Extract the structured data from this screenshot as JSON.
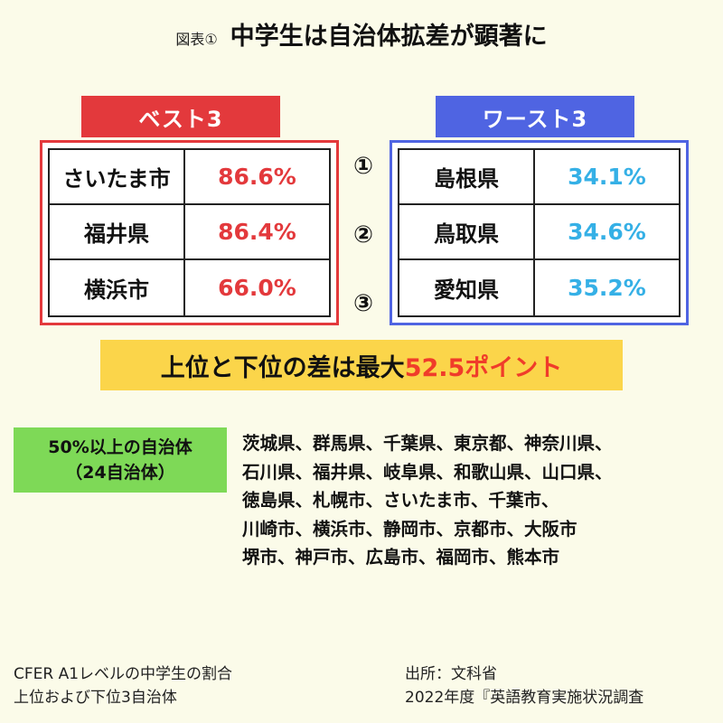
{
  "header": {
    "figure_label": "図表①",
    "title": "中学生は自治体拡差が顕著に"
  },
  "best": {
    "label": "ベスト3",
    "rows": [
      {
        "name": "さいたま市",
        "value": "86.6%"
      },
      {
        "name": "福井県",
        "value": "86.4%"
      },
      {
        "name": "横浜市",
        "value": "66.0%"
      }
    ]
  },
  "worst": {
    "label": "ワースト3",
    "rows": [
      {
        "name": "島根県",
        "value": "34.1%"
      },
      {
        "name": "鳥取県",
        "value": "34.6%"
      },
      {
        "name": "愛知県",
        "value": "35.2%"
      }
    ]
  },
  "rank_markers": [
    "①",
    "②",
    "③"
  ],
  "gap_banner": {
    "text": "上位と下位の差は最大",
    "highlight": "52.5ポイント"
  },
  "over50": {
    "line1": "50%以上の自治体",
    "line2": "（24自治体）",
    "list_lines": [
      "茨城県、群馬県、千葉県、東京都、神奈川県、",
      "石川県、福井県、岐阜県、和歌山県、山口県、",
      "徳島県、札幌市、さいたま市、千葉市、",
      "川崎市、横浜市、静岡市、京都市、大阪市",
      "堺市、神戸市、広島市、福岡市、熊本市"
    ]
  },
  "footer": {
    "left_line1": "CFER A1レベルの中学生の割合",
    "left_line2": "上位および下位3自治体",
    "right_line1": "出所：文科省",
    "right_line2": "2022年度『英語教育実施状況調査"
  },
  "colors": {
    "best_accent": "#e3393c",
    "worst_accent": "#4f64e2",
    "worst_value": "#35b0e6",
    "banner": "#fbd54a",
    "highlight": "#f03c2a",
    "over50_box": "#7ed957"
  }
}
